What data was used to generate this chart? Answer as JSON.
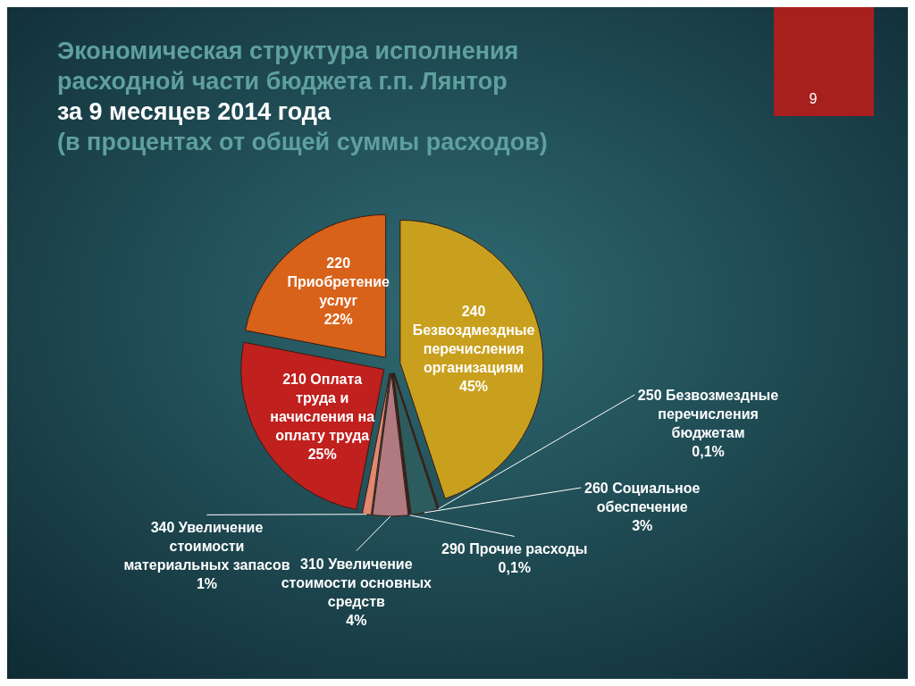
{
  "chart_data": {
    "type": "pie",
    "title": "Экономическая структура исполнения расходной части бюджета г.п. Лянтор",
    "subtitle": "за 9 месяцев 2014 года",
    "categories": [
      "240 Безвоздмездные перечисления организациям",
      "250 Безвозмездные перечисления бюджетам",
      "260 Социальное обеспечение",
      "290 Прочие расходы",
      "310 Увеличение стоимости основных средств",
      "340 Увеличение стоимости материальных запасов",
      "210 Оплата труда и начисления на оплату труда",
      "220 Приобретение услуг"
    ],
    "values": [
      45,
      0.1,
      3,
      0.1,
      4,
      1,
      25,
      22
    ],
    "value_labels": [
      "45%",
      "0,1%",
      "3%",
      "0,1%",
      "4%",
      "1%",
      "25%",
      "22%"
    ],
    "colors": [
      "#c9a01e",
      "#2f7a7a",
      "#2c5c5e",
      "#5c2d6e",
      "#b07a80",
      "#e08870",
      "#c0201e",
      "#d8621a"
    ],
    "annotations": [
      "(в процентах от общей суммы расходов)",
      "9"
    ]
  }
}
